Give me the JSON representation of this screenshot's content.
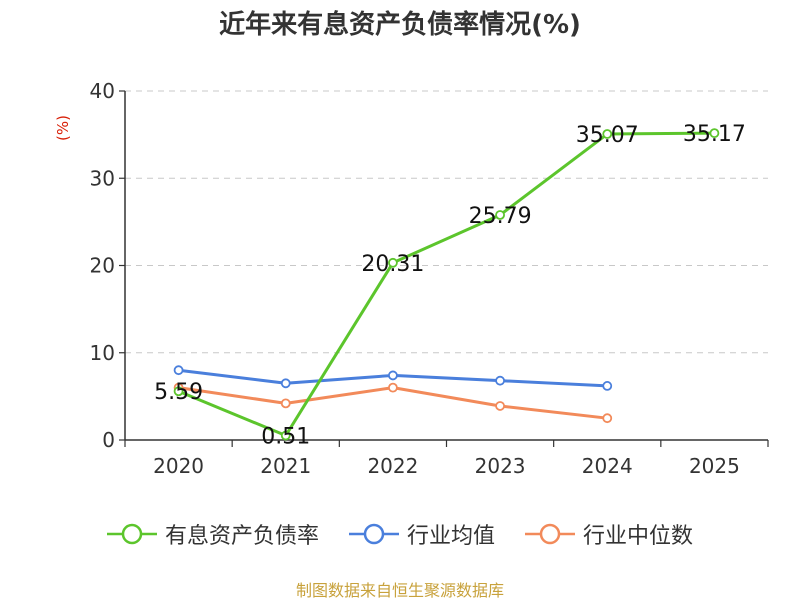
{
  "chart_data": {
    "type": "line",
    "title": "近年来有息资产负债率情况(%)",
    "ylabel": "(%)",
    "categories": [
      "2020",
      "2021",
      "2022",
      "2023",
      "2024",
      "2025"
    ],
    "ylim": [
      0,
      40
    ],
    "yticks": [
      0,
      10,
      20,
      30,
      40
    ],
    "grid": true,
    "legend_position": "bottom",
    "series": [
      {
        "name": "有息资产负债率",
        "color": "#5cc52c",
        "values": [
          5.59,
          0.51,
          20.31,
          25.79,
          35.07,
          35.17
        ],
        "labels": [
          "5.59",
          "0.51",
          "20.31",
          "25.79",
          "35.07",
          "35.17"
        ]
      },
      {
        "name": "行业均值",
        "color": "#4a7fdc",
        "values": [
          8.0,
          6.5,
          7.4,
          6.8,
          6.2,
          null
        ]
      },
      {
        "name": "行业中位数",
        "color": "#f28a5a",
        "values": [
          6.0,
          4.2,
          6.0,
          3.9,
          2.5,
          null
        ]
      }
    ]
  },
  "footer": {
    "source": "制图数据来自恒生聚源数据库"
  }
}
